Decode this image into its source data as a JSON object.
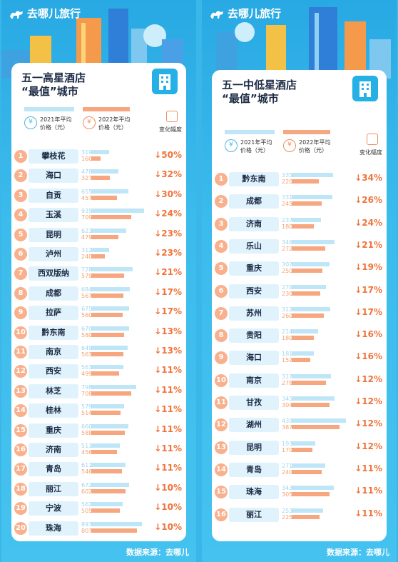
{
  "brand": "去哪儿旅行",
  "source": "数据来源：去哪儿",
  "legend": {
    "label_2021": "2021年平均\n价格（元）",
    "label_2022": "2022年平均\n价格（元）",
    "label_change": "变化幅度",
    "icon_2021": "¥",
    "icon_2022": "¥"
  },
  "colors": {
    "bg": "#3ab6e8",
    "bar_2021": "#bfe6f7",
    "bar_2022": "#f6a77f",
    "change": "#f0733a",
    "rank": "#f9b08c"
  },
  "left": {
    "title": "五一高星酒店\n“最值”城市"
  },
  "right": {
    "title": "五一中低星酒店\n“最值”城市"
  },
  "chart_data": [
    {
      "type": "bar",
      "title": "五一高星酒店“最值”城市",
      "series": [
        {
          "name": "2021年平均价格（元）",
          "values": [
            319,
            478,
            655,
            935,
            623,
            312,
            728,
            684,
            675,
            670,
            649,
            563,
            798,
            579,
            660,
            511,
            611,
            672,
            562,
            893
          ]
        },
        {
          "name": "2022年平均价格（元）",
          "values": [
            160,
            327,
            457,
            709,
            479,
            240,
            579,
            567,
            560,
            580,
            563,
            499,
            708,
            514,
            588,
            456,
            546,
            602,
            505,
            807
          ]
        }
      ],
      "rows": [
        {
          "rank": "1",
          "city": "攀枝花",
          "v2021": "319",
          "v2022": "160",
          "change": "↓50%"
        },
        {
          "rank": "2",
          "city": "海口",
          "v2021": "478",
          "v2022": "327",
          "change": "↓32%"
        },
        {
          "rank": "3",
          "city": "自贡",
          "v2021": "655",
          "v2022": "457",
          "change": "↓30%"
        },
        {
          "rank": "4",
          "city": "玉溪",
          "v2021": "935",
          "v2022": "709",
          "change": "↓24%"
        },
        {
          "rank": "5",
          "city": "昆明",
          "v2021": "623",
          "v2022": "479",
          "change": "↓23%"
        },
        {
          "rank": "6",
          "city": "泸州",
          "v2021": "312",
          "v2022": "240",
          "change": "↓23%"
        },
        {
          "rank": "7",
          "city": "西双版纳",
          "v2021": "728",
          "v2022": "579",
          "change": "↓21%"
        },
        {
          "rank": "8",
          "city": "成都",
          "v2021": "684",
          "v2022": "567",
          "change": "↓17%"
        },
        {
          "rank": "9",
          "city": "拉萨",
          "v2021": "675",
          "v2022": "560",
          "change": "↓17%"
        },
        {
          "rank": "10",
          "city": "黔东南",
          "v2021": "670",
          "v2022": "580",
          "change": "↓13%"
        },
        {
          "rank": "11",
          "city": "南京",
          "v2021": "649",
          "v2022": "563",
          "change": "↓13%"
        },
        {
          "rank": "12",
          "city": "西安",
          "v2021": "563",
          "v2022": "499",
          "change": "↓11%"
        },
        {
          "rank": "13",
          "city": "林芝",
          "v2021": "798",
          "v2022": "708",
          "change": "↓11%"
        },
        {
          "rank": "14",
          "city": "桂林",
          "v2021": "579",
          "v2022": "514",
          "change": "↓11%"
        },
        {
          "rank": "15",
          "city": "重庆",
          "v2021": "660",
          "v2022": "588",
          "change": "↓11%"
        },
        {
          "rank": "16",
          "city": "济南",
          "v2021": "511",
          "v2022": "456",
          "change": "↓11%"
        },
        {
          "rank": "17",
          "city": "青岛",
          "v2021": "611",
          "v2022": "546",
          "change": "↓11%"
        },
        {
          "rank": "18",
          "city": "丽江",
          "v2021": "672",
          "v2022": "602",
          "change": "↓10%"
        },
        {
          "rank": "19",
          "city": "宁波",
          "v2021": "562",
          "v2022": "505",
          "change": "↓10%"
        },
        {
          "rank": "20",
          "city": "珠海",
          "v2021": "893",
          "v2022": "807",
          "change": "↓10%"
        }
      ]
    },
    {
      "type": "bar",
      "title": "五一中低星酒店“最值”城市",
      "series": [
        {
          "name": "2021年平均价格（元）",
          "values": [
            335,
            331,
            237,
            346,
            307,
            276,
            312,
            214,
            181,
            317,
            345,
            439,
            193,
            271,
            343,
            253
          ]
        },
        {
          "name": "2022年平均价格（元）",
          "values": [
            220,
            245,
            180,
            272,
            250,
            230,
            260,
            180,
            152,
            278,
            304,
            387,
            170,
            240,
            305,
            225
          ]
        }
      ],
      "rows": [
        {
          "rank": "1",
          "city": "黔东南",
          "v2021": "335",
          "v2022": "220",
          "change": "↓34%"
        },
        {
          "rank": "2",
          "city": "成都",
          "v2021": "331",
          "v2022": "245",
          "change": "↓26%"
        },
        {
          "rank": "3",
          "city": "济南",
          "v2021": "237",
          "v2022": "180",
          "change": "↓24%"
        },
        {
          "rank": "4",
          "city": "乐山",
          "v2021": "346",
          "v2022": "272",
          "change": "↓21%"
        },
        {
          "rank": "5",
          "city": "重庆",
          "v2021": "307",
          "v2022": "250",
          "change": "↓19%"
        },
        {
          "rank": "6",
          "city": "西安",
          "v2021": "276",
          "v2022": "230",
          "change": "↓17%"
        },
        {
          "rank": "7",
          "city": "苏州",
          "v2021": "312",
          "v2022": "260",
          "change": "↓17%"
        },
        {
          "rank": "8",
          "city": "贵阳",
          "v2021": "214",
          "v2022": "180",
          "change": "↓16%"
        },
        {
          "rank": "9",
          "city": "海口",
          "v2021": "181",
          "v2022": "152",
          "change": "↓16%"
        },
        {
          "rank": "10",
          "city": "南京",
          "v2021": "317",
          "v2022": "278",
          "change": "↓12%"
        },
        {
          "rank": "11",
          "city": "甘孜",
          "v2021": "345",
          "v2022": "304",
          "change": "↓12%"
        },
        {
          "rank": "12",
          "city": "湖州",
          "v2021": "439",
          "v2022": "387",
          "change": "↓12%"
        },
        {
          "rank": "13",
          "city": "昆明",
          "v2021": "193",
          "v2022": "170",
          "change": "↓12%"
        },
        {
          "rank": "14",
          "city": "青岛",
          "v2021": "271",
          "v2022": "240",
          "change": "↓11%"
        },
        {
          "rank": "15",
          "city": "珠海",
          "v2021": "343",
          "v2022": "305",
          "change": "↓11%"
        },
        {
          "rank": "16",
          "city": "丽江",
          "v2021": "253",
          "v2022": "225",
          "change": "↓11%"
        }
      ]
    }
  ]
}
